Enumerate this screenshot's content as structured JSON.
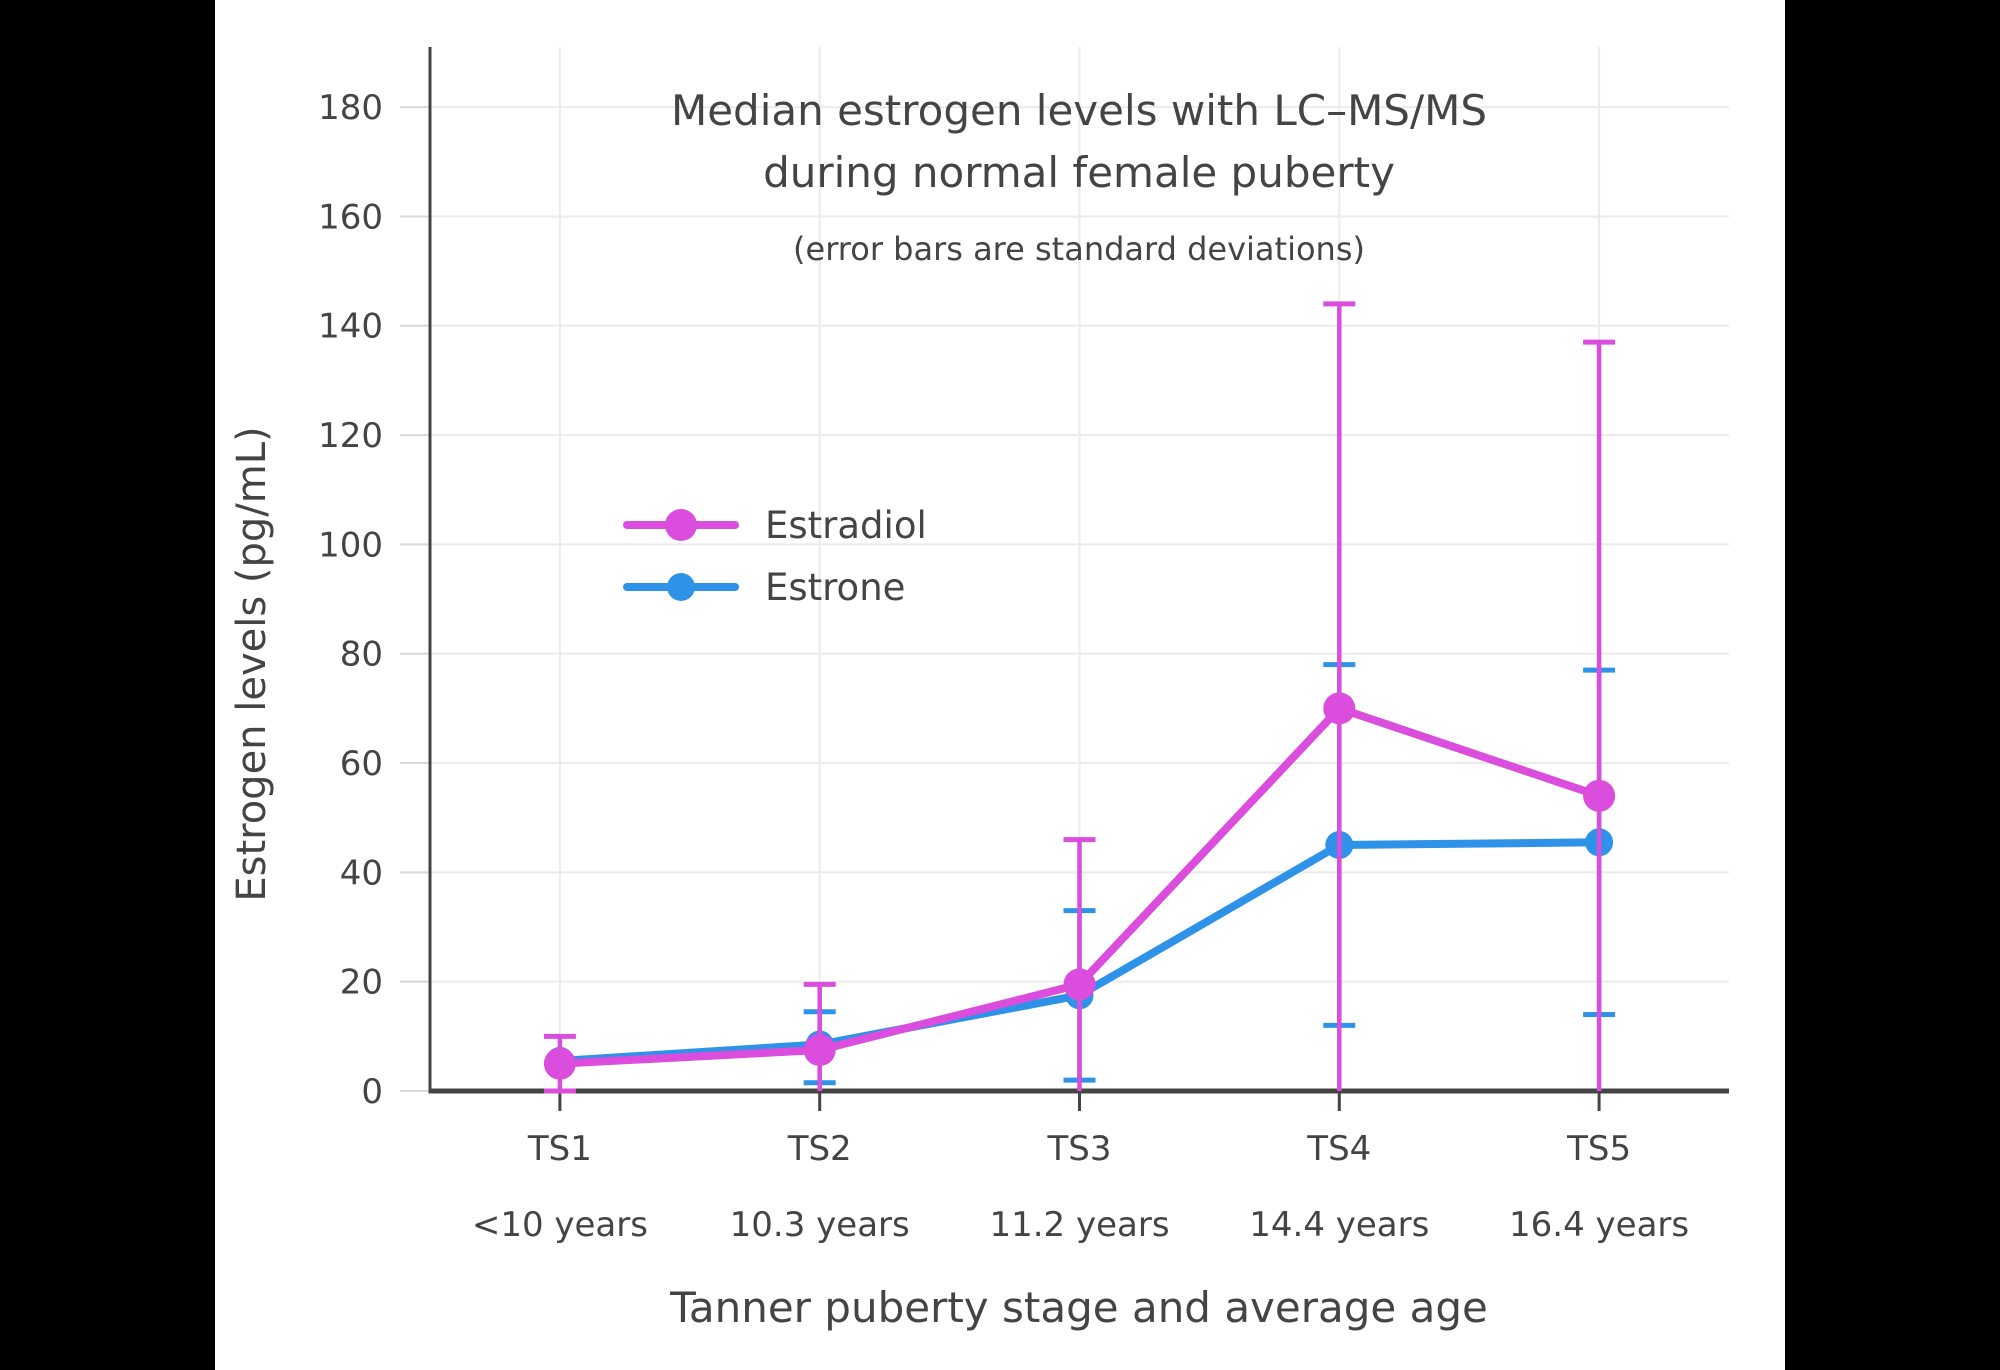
{
  "figure": {
    "title_line1": "Median estrogen levels with LC–MS/MS",
    "title_line2": "during normal female puberty",
    "subtitle": "(error bars are standard deviations)",
    "x_axis_title": "Tanner puberty stage and average age",
    "y_axis_title": "Estrogen levels (pg/mL)"
  },
  "legend": {
    "position": "inside-left",
    "items": [
      {
        "label": "Estradiol",
        "color": "#DB4DDD",
        "marker_radius": 16
      },
      {
        "label": "Estrone",
        "color": "#2E92E8",
        "marker_radius": 14
      }
    ]
  },
  "colors": {
    "background": "#000000",
    "panel": "#ffffff",
    "text": "#444444",
    "axis": "#444444",
    "gridline": "#EBEBEB",
    "y_tick": "#D8D8D8"
  },
  "chart_data": {
    "type": "line",
    "title": "Median estrogen levels with LC–MS/MS during normal female puberty",
    "subtitle": "(error bars are standard deviations)",
    "xlabel": "Tanner puberty stage and average age",
    "ylabel": "Estrogen levels (pg/mL)",
    "categories": [
      "TS1",
      "TS2",
      "TS3",
      "TS4",
      "TS5"
    ],
    "category_ages": [
      "<10 years",
      "10.3 years",
      "11.2 years",
      "14.4 years",
      "16.4 years"
    ],
    "ylim": [
      0,
      191
    ],
    "y_ticks": [
      0,
      20,
      40,
      60,
      80,
      100,
      120,
      140,
      160,
      180
    ],
    "grid": true,
    "error_bars": "standard deviations (clipped at 0)",
    "series": [
      {
        "name": "Estrone",
        "color": "#2E92E8",
        "marker_radius": 14,
        "line_width": 8,
        "values": [
          5.5,
          8.5,
          17.5,
          45,
          45.5
        ],
        "err_high": [
          null,
          14.5,
          33,
          78,
          77
        ],
        "err_low": [
          null,
          1.5,
          2,
          12,
          14
        ]
      },
      {
        "name": "Estradiol",
        "color": "#DB4DDD",
        "marker_radius": 16,
        "line_width": 8,
        "values": [
          5,
          7.5,
          19.5,
          70,
          54
        ],
        "err_high": [
          10,
          19.5,
          46,
          144,
          137
        ],
        "err_low": [
          0,
          -4.5,
          -7,
          -4,
          -29
        ]
      }
    ]
  }
}
